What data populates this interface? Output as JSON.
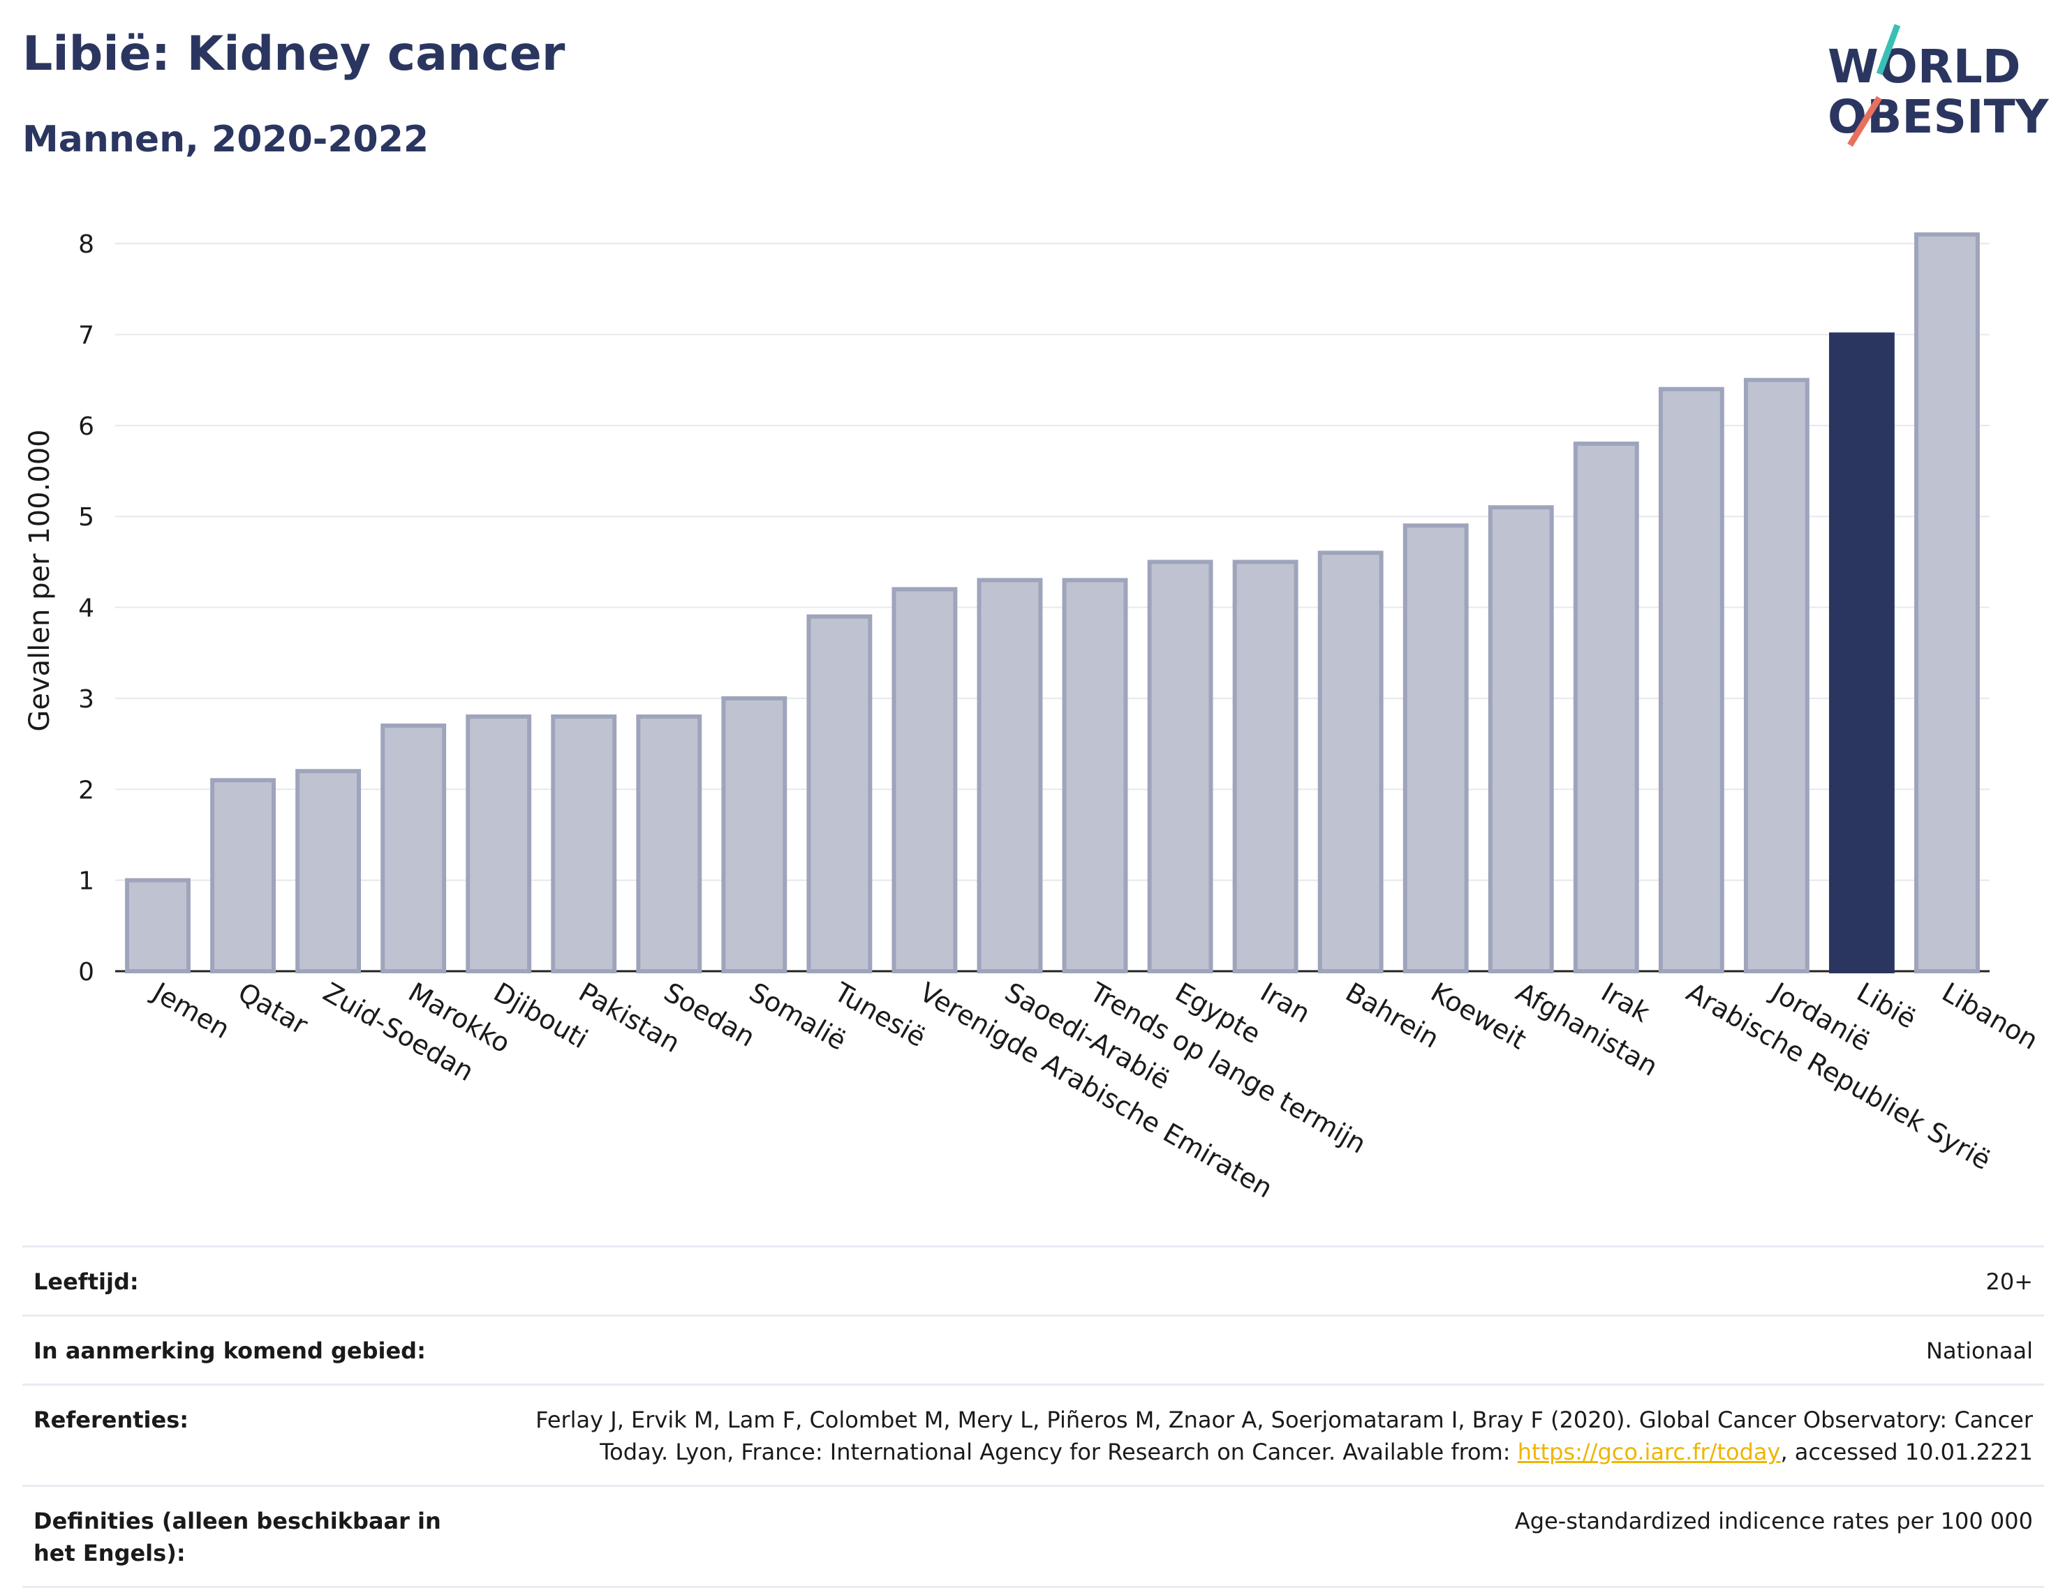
{
  "header": {
    "title": "Libië: Kidney cancer",
    "subtitle": "Mannen, 2020-2022"
  },
  "logo": {
    "line1": "WORLD",
    "line2": "OBESITY",
    "colors": {
      "text": "#2b3660",
      "slash_top": "#3bbfb4",
      "slash_bottom": "#e8715e"
    }
  },
  "chart_data": {
    "type": "bar",
    "ylabel": "Gevallen per 100.000",
    "ylim": [
      0,
      8.3
    ],
    "yticks": [
      0,
      1,
      2,
      3,
      4,
      5,
      6,
      7,
      8
    ],
    "grid": true,
    "categories": [
      "Jemen",
      "Qatar",
      "Zuid-Soedan",
      "Marokko",
      "Djibouti",
      "Pakistan",
      "Soedan",
      "Somalië",
      "Tunesië",
      "Verenigde Arabische Emiraten",
      "Saoedi-Arabië",
      "Trends op lange termijn",
      "Egypte",
      "Iran",
      "Bahrein",
      "Koeweit",
      "Afghanistan",
      "Irak",
      "Arabische Republiek Syrië",
      "Jordanië",
      "Libië",
      "Libanon"
    ],
    "values": [
      1.0,
      2.1,
      2.2,
      2.7,
      2.8,
      2.8,
      2.8,
      3.0,
      3.9,
      4.2,
      4.3,
      4.3,
      4.5,
      4.5,
      4.6,
      4.9,
      5.1,
      5.8,
      6.4,
      6.5,
      7.0,
      8.1
    ],
    "highlight": "Libië",
    "colors": {
      "bar": "#bfc3d1",
      "bar_stroke": "#9ea4bb",
      "highlight": "#2b3660"
    }
  },
  "meta": {
    "rows": [
      {
        "label": "Leeftijd:",
        "value": "20+"
      },
      {
        "label": "In aanmerking komend gebied:",
        "value": "Nationaal"
      },
      {
        "label": "Referenties:",
        "value_before": "Ferlay J, Ervik M, Lam F, Colombet M, Mery L, Piñeros M, Znaor A, Soerjomataram I, Bray F (2020). Global Cancer Observatory: Cancer Today. Lyon, France: International Agency for Research on Cancer. Available from: ",
        "link": "https://gco.iarc.fr/today",
        "value_after": ", accessed 10.01.2221"
      },
      {
        "label": "Definities (alleen beschikbaar in het Engels):",
        "value": "Age-standardized indicence rates per 100 000"
      }
    ]
  }
}
